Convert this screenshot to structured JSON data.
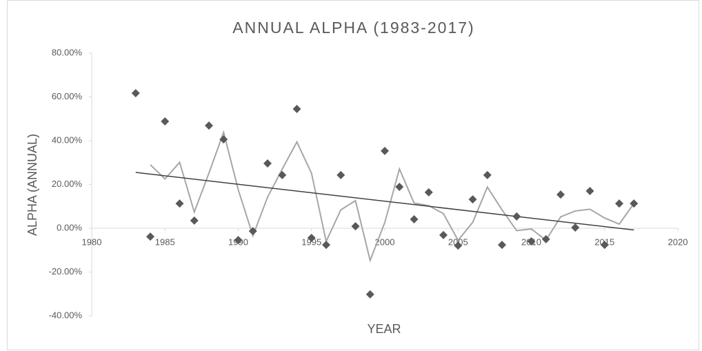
{
  "chart_data": {
    "type": "scatter",
    "title": "ANNUAL ALPHA (1983-2017)",
    "x_label": "YEAR",
    "y_label": "ALPHA (ANNUAL)",
    "x": [
      1983,
      1984,
      1985,
      1986,
      1987,
      1988,
      1989,
      1990,
      1991,
      1992,
      1993,
      1994,
      1995,
      1996,
      1997,
      1998,
      1999,
      2000,
      2001,
      2002,
      2003,
      2004,
      2005,
      2006,
      2007,
      2008,
      2009,
      2010,
      2011,
      2012,
      2013,
      2014,
      2015,
      2016,
      2017
    ],
    "series": [
      {
        "type": "scatter",
        "color": "#595959",
        "values": [
          61.7,
          -3.8,
          48.8,
          11.3,
          3.5,
          46.9,
          40.6,
          -5.4,
          -1.3,
          29.6,
          24.3,
          54.5,
          -4.4,
          -7.6,
          24.3,
          0.9,
          -30.2,
          35.3,
          18.9,
          4.1,
          16.4,
          -3.1,
          -7.9,
          13.2,
          24.3,
          -7.6,
          5.4,
          -6.0,
          -5.0,
          15.4,
          0.3,
          17.0,
          -7.6,
          11.3,
          11.3
        ]
      },
      {
        "type": "line",
        "color": "#a6a6a6",
        "values": [
          null,
          29.0,
          22.5,
          30.1,
          7.4,
          25.2,
          43.8,
          17.6,
          -3.4,
          14.2,
          27.0,
          39.4,
          25.1,
          -6.0,
          8.4,
          12.6,
          -14.7,
          2.6,
          27.1,
          11.5,
          10.3,
          6.7,
          -5.5,
          2.7,
          18.8,
          8.4,
          -1.1,
          -0.3,
          -5.5,
          5.2,
          7.9,
          8.7,
          4.7,
          1.9,
          11.3
        ]
      },
      {
        "type": "line",
        "color": "#404040",
        "x": [
          1983,
          2017
        ],
        "values": [
          25.5,
          -0.8
        ]
      }
    ],
    "xlim": [
      1980,
      2020
    ],
    "xticks": [
      1980,
      1985,
      1990,
      1995,
      2000,
      2005,
      2010,
      2015,
      2020
    ],
    "ylim": [
      -40,
      80
    ],
    "yticks": [
      {
        "value": -40,
        "label": "-40.00%"
      },
      {
        "value": -20,
        "label": "-20.00%"
      },
      {
        "value": 0,
        "label": "0.00%"
      },
      {
        "value": 20,
        "label": "20.00%"
      },
      {
        "value": 40,
        "label": "40.00%"
      },
      {
        "value": 60,
        "label": "60.00%"
      },
      {
        "value": 80,
        "label": "80.00%"
      }
    ]
  }
}
